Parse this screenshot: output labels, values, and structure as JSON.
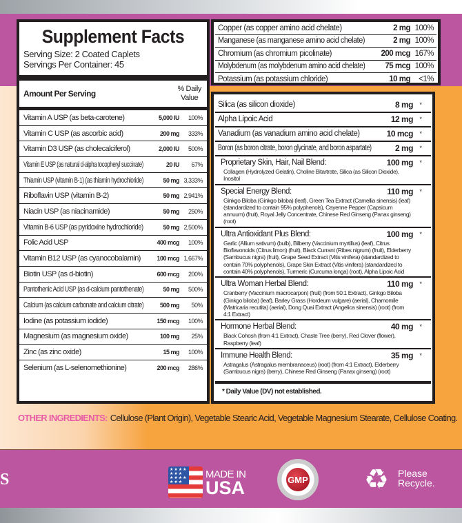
{
  "label": {
    "title": "Supplement Facts",
    "serving_size": "Serving Size: 2 Coated Caplets",
    "servings_per_container": "Servings Per Container: 45",
    "amount_header": "Amount Per Serving",
    "dv_header_1": "% Daily",
    "dv_header_2": "Value",
    "left_rows": [
      {
        "name": "Vitamin A USP (as beta-carotene)",
        "amount": "5,000 IU",
        "dv": "100%"
      },
      {
        "name": "Vitamin C USP (as ascorbic acid)",
        "amount": "200 mg",
        "dv": "333%"
      },
      {
        "name": "Vitamin D3 USP (as cholecalciferol)",
        "amount": "2,000 IU",
        "dv": "500%"
      },
      {
        "name": "Vitamin E USP (as natural d-alpha tocopheryl succinate)",
        "amount": "20 IU",
        "dv": "67%"
      },
      {
        "name": "Thiamin USP (vitamin B-1) (as thiamin hydrochloride)",
        "amount": "50 mg",
        "dv": "3,333%"
      },
      {
        "name": "Riboflavin USP (vitamin B-2)",
        "amount": "50 mg",
        "dv": "2,941%"
      },
      {
        "name": "Niacin USP (as niacinamide)",
        "amount": "50 mg",
        "dv": "250%"
      },
      {
        "name": "Vitamin B-6 USP (as pyridoxine hydrochloride)",
        "amount": "50 mg",
        "dv": "2,500%"
      },
      {
        "name": "Folic Acid USP",
        "amount": "400 mcg",
        "dv": "100%"
      },
      {
        "name": "Vitamin B12 USP (as cyanocobalamin)",
        "amount": "100 mcg",
        "dv": "1,667%"
      },
      {
        "name": "Biotin USP (as d-biotin)",
        "amount": "600 mcg",
        "dv": "200%"
      },
      {
        "name": "Pantothenic Acid USP (as d-calcium pantothenate)",
        "amount": "50 mg",
        "dv": "500%"
      },
      {
        "name": "Calcium (as calcium carbonate and calcium citrate)",
        "amount": "500 mg",
        "dv": "50%"
      },
      {
        "name": "Iodine (as potassium iodide)",
        "amount": "150 mcg",
        "dv": "100%"
      },
      {
        "name": "Magnesium (as magnesium oxide)",
        "amount": "100 mg",
        "dv": "25%"
      },
      {
        "name": "Zinc (as zinc oxide)",
        "amount": "15 mg",
        "dv": "100%"
      },
      {
        "name": "Selenium (as L-selenomethionine)",
        "amount": "200 mcg",
        "dv": "286%"
      }
    ],
    "top_right_rows": [
      {
        "name": "Copper (as copper amino acid chelate)",
        "amount": "2 mg",
        "dv": "100%"
      },
      {
        "name": "Manganese (as manganese amino acid chelate)",
        "amount": "2 mg",
        "dv": "100%"
      },
      {
        "name": "Chromium (as chromium picolinate)",
        "amount": "200 mcg",
        "dv": "167%"
      },
      {
        "name": "Molybdenum (as molybdenum amino acid chelate)",
        "amount": "75 mcg",
        "dv": "100%"
      },
      {
        "name": "Potassium (as potassium chloride)",
        "amount": "10 mg",
        "dv": "<1%"
      }
    ],
    "bottom_right_rows": [
      {
        "name": "Silica (as silicon dioxide)",
        "amount": "8 mg",
        "dv": "*",
        "sub": ""
      },
      {
        "name": "Alpha Lipoic Acid",
        "amount": "12 mg",
        "dv": "*",
        "sub": ""
      },
      {
        "name": "Vanadium (as vanadium amino acid chelate)",
        "amount": "10 mcg",
        "dv": "*",
        "sub": ""
      },
      {
        "name": "Boron (as boron citrate, boron glycinate, and boron aspartate)",
        "amount": "2 mg",
        "dv": "*",
        "sub": ""
      },
      {
        "name": "Proprietary Skin, Hair, Nail Blend:",
        "amount": "100 mg",
        "dv": "*",
        "sub": "Collagen (Hydrolyzed Gelatin), Choline Bitartrate, Silica (as Silicon Dioxide), Inositol"
      },
      {
        "name": "Special Energy Blend:",
        "amount": "110 mg",
        "dv": "*",
        "sub": "Ginkgo Biloba (Ginkgo biloba) (leaf), Green Tea Extract (Camellia sinensis) (leaf) (standardized to contain 95% polyphenols), Cayenne Pepper (Capsicum annuum) (fruit), Royal Jelly Concentrate, Chinese Red Ginseng (Panax ginseng) (root)"
      },
      {
        "name": "Ultra Antioxidant Plus Blend:",
        "amount": "100 mg",
        "dv": "*",
        "sub": "Garlic (Allium sativum) (bulb), Bilberry (Vaccinium myrtillus) (leaf), Citrus Bioflavonoids (Citrus limon) (fruit), Black Currant (Ribes nigrum) (fruit), Elderberry (Sambucus nigra) (fruit), Grape Seed Extract (Vitis vinifera) (standardized to contain 70% polyphenols), Grape Skin Extract (Vitis vinifera) (standardized to contain 40% polyphenols), Turmeric (Curcuma longa) (root), Alpha Lipoic Acid"
      },
      {
        "name": "Ultra Woman Herbal Blend:",
        "amount": "110 mg",
        "dv": "*",
        "sub": "Cranberry (Vaccinium macrocarpon) (fruit) (from 50:1 Extract), Ginkgo Biloba (Ginkgo biloba) (leaf), Barley Grass (Hordeum vulgare) (aerial), Chamomile (Matricaria recutita) (aerial), Dong Quai Extract (Angelica sinensis) (root) (from 4:1 Extract)"
      },
      {
        "name": "Hormone Herbal Blend:",
        "amount": "40 mg",
        "dv": "*",
        "sub": "Black Cohosh (from 4:1 Extract), Chaste Tree (berry), Red Clover (flower), Raspberry (leaf)"
      },
      {
        "name": "Immune Health Blend:",
        "amount": "35 mg",
        "dv": "*",
        "sub": "Astragalus (Astragalus membranaceus) (root) (from 4:1 Extract), Elderberry (Sambucus nigra) (berry), Chinese Red Ginseng (Panax ginseng) (root)"
      }
    ],
    "footnote": "* Daily Value (DV) not established."
  },
  "other_ingredients": {
    "label": "OTHER INGREDIENTS:",
    "text": "Cellulose (Plant Origin), Vegetable Stearic Acid, Vegetable Magnesium Stearate, Cellulose Coating."
  },
  "badges": {
    "partial_letter": "S",
    "made_in": "MADE IN",
    "usa": "USA",
    "gmp": "GMP",
    "please": "Please",
    "recycle": "Recycle."
  },
  "colors": {
    "purple": "#bc56a0",
    "orange": "#f7a33e",
    "pink_label": "#e95ba6"
  }
}
